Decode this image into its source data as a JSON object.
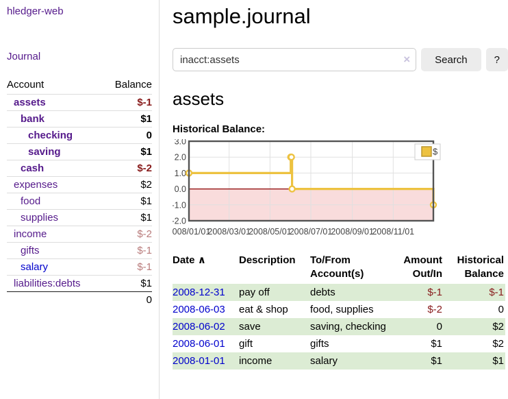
{
  "sidebar": {
    "brand": "hledger-web",
    "nav": {
      "journal_label": "Journal"
    },
    "accounts": {
      "col_account": "Account",
      "col_balance": "Balance",
      "rows": [
        {
          "name": "assets",
          "depth": 0,
          "bold": true,
          "balance": "$-1"
        },
        {
          "name": "bank",
          "depth": 1,
          "bold": true,
          "balance": "$1"
        },
        {
          "name": "checking",
          "depth": 2,
          "bold": true,
          "balance": "0"
        },
        {
          "name": "saving",
          "depth": 2,
          "bold": true,
          "balance": "$1"
        },
        {
          "name": "cash",
          "depth": 1,
          "bold": true,
          "balance": "$-2"
        },
        {
          "name": "expenses",
          "depth": 0,
          "bold": false,
          "balance": "$2"
        },
        {
          "name": "food",
          "depth": 1,
          "bold": false,
          "balance": "$1"
        },
        {
          "name": "supplies",
          "depth": 1,
          "bold": false,
          "balance": "$1"
        },
        {
          "name": "income",
          "depth": 0,
          "bold": false,
          "balance": "$-2"
        },
        {
          "name": "gifts",
          "depth": 1,
          "bold": false,
          "balance": "$-1"
        },
        {
          "name": "salary",
          "depth": 1,
          "bold": false,
          "balance": "$-1",
          "unvisited_link": true
        },
        {
          "name": "liabilities:debts",
          "depth": 0,
          "bold": false,
          "balance": "$1"
        }
      ],
      "total": "0"
    }
  },
  "header": {
    "title": "sample.journal"
  },
  "search": {
    "query": "inacct:assets",
    "clear_icon": "×",
    "button_label": "Search",
    "help_label": "?"
  },
  "report": {
    "heading": "assets",
    "chart_label": "Historical Balance:"
  },
  "chart_data": {
    "type": "line",
    "title": "Historical Balance:",
    "series": [
      {
        "name": "$",
        "color": "#edc240",
        "marker_fill": "#ffffff",
        "step": "after",
        "points": [
          [
            "2008-01-01",
            1
          ],
          [
            "2008-06-01",
            2
          ],
          [
            "2008-06-02",
            2
          ],
          [
            "2008-06-03",
            0
          ],
          [
            "2008-12-31",
            -1
          ]
        ]
      }
    ],
    "x_ticks": [
      "2008/01/01",
      "2008/03/01",
      "2008/05/01",
      "2008/07/01",
      "2008/09/01",
      "2008/11/01"
    ],
    "y_ticks": [
      3.0,
      2.0,
      1.0,
      0.0,
      -1.0,
      -2.0
    ],
    "ylim": [
      -2,
      3
    ],
    "x_range": [
      "2008-01-01",
      "2008-12-31"
    ],
    "grid": true,
    "grid_color": "#e0e0e0",
    "border_color": "#545454",
    "negative_region_color": "#f9dcdc",
    "zero_line_color": "#8b0000",
    "axis_label_color": "#444444",
    "legend": {
      "label": "$",
      "position": "top-right"
    }
  },
  "register": {
    "columns": {
      "date": "Date",
      "description": "Description",
      "accounts": "To/From Account(s)",
      "amount": "Amount Out/In",
      "balance": "Historical Balance"
    },
    "sort_icon": "∧",
    "rows": [
      {
        "date": "2008-12-31",
        "description": "pay off",
        "accounts": "debts",
        "amount": "$-1",
        "balance": "$-1"
      },
      {
        "date": "2008-06-03",
        "description": "eat & shop",
        "accounts": "food, supplies",
        "amount": "$-2",
        "balance": "0"
      },
      {
        "date": "2008-06-02",
        "description": "save",
        "accounts": "saving, checking",
        "amount": "0",
        "balance": "$2"
      },
      {
        "date": "2008-06-01",
        "description": "gift",
        "accounts": "gifts",
        "amount": "$1",
        "balance": "$2"
      },
      {
        "date": "2008-01-01",
        "description": "income",
        "accounts": "salary",
        "amount": "$1",
        "balance": "$1"
      }
    ]
  },
  "colors": {
    "link_purple": "#551a8b",
    "link_blue": "#0000cc",
    "negative_strong": "#881b1b",
    "negative_muted": "#b97c7c",
    "row_stripe_green": "#dcecd4",
    "divider_gray": "#dddddd"
  }
}
